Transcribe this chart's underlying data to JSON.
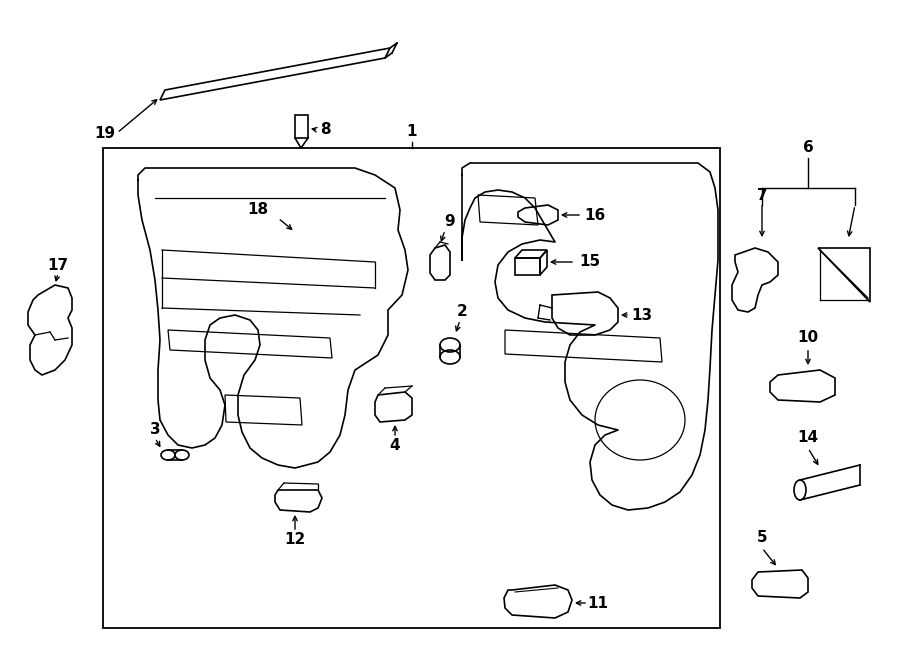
{
  "bg_color": "#ffffff",
  "line_color": "#000000",
  "fig_width": 9.0,
  "fig_height": 6.61,
  "dpi": 100,
  "lw": 1.2
}
